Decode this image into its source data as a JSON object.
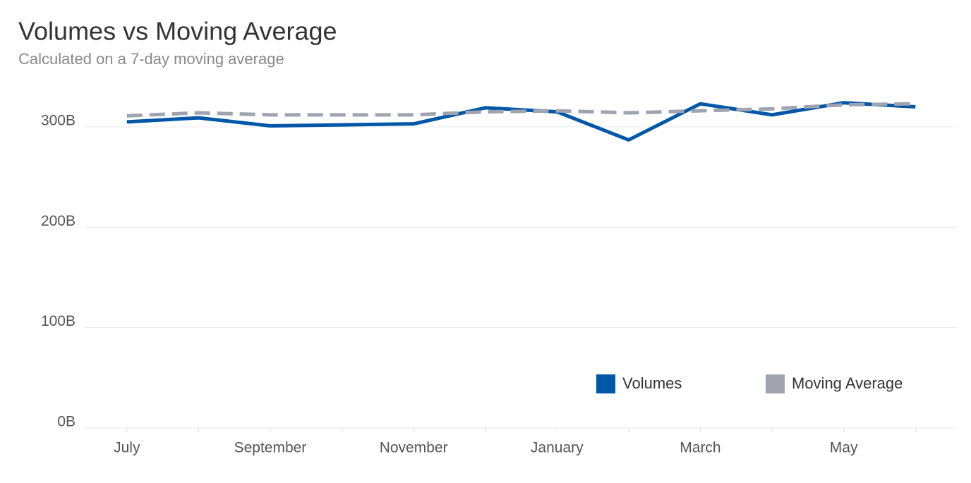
{
  "chart_data": {
    "type": "line",
    "title": "Volumes vs Moving Average",
    "subtitle": "Calculated on a 7-day moving average",
    "categories": [
      "July",
      null,
      "September",
      null,
      "November",
      null,
      "January",
      null,
      "March",
      null,
      "May",
      null
    ],
    "series": [
      {
        "name": "Volumes",
        "color": "#0057a8",
        "dashed": false,
        "values": [
          305,
          309,
          301,
          302,
          303,
          319,
          315,
          287,
          323,
          312,
          324,
          320
        ]
      },
      {
        "name": "Moving Average",
        "color": "#9ea3b0",
        "dashed": true,
        "values": [
          311,
          314,
          312,
          312,
          312,
          315,
          316,
          314,
          316,
          318,
          322,
          323
        ]
      }
    ],
    "ylim": [
      0,
      340
    ],
    "yticks": [
      {
        "value": 0,
        "label": "0B"
      },
      {
        "value": 100,
        "label": "100B"
      },
      {
        "value": 200,
        "label": "200B"
      },
      {
        "value": 300,
        "label": "300B"
      }
    ],
    "grid": true,
    "legend": "bottom-right"
  }
}
